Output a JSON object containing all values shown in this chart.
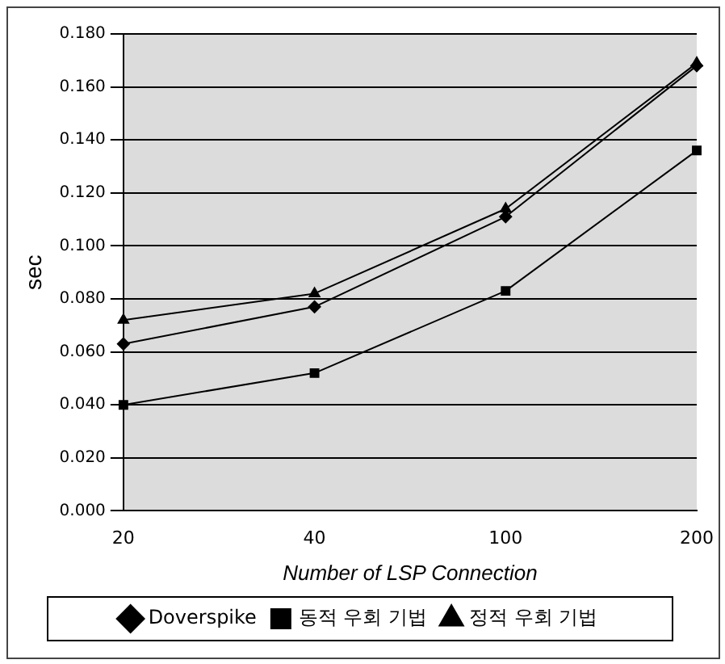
{
  "chart_data": {
    "type": "line",
    "xlabel": "Number of LSP Connection",
    "ylabel": "sec",
    "categories": [
      "20",
      "40",
      "100",
      "200"
    ],
    "ylim": [
      0,
      0.18
    ],
    "yticks": [
      {
        "value": 0,
        "label": "0.000"
      },
      {
        "value": 0.02,
        "label": "0.020"
      },
      {
        "value": 0.04,
        "label": "0.040"
      },
      {
        "value": 0.06,
        "label": "0.060"
      },
      {
        "value": 0.08,
        "label": "0.080"
      },
      {
        "value": 0.1,
        "label": "0.100"
      },
      {
        "value": 0.12,
        "label": "0.120"
      },
      {
        "value": 0.14,
        "label": "0.140"
      },
      {
        "value": 0.16,
        "label": "0.160"
      },
      {
        "value": 0.18,
        "label": "0.180"
      }
    ],
    "grid": "y",
    "legend": "bottom",
    "line_style": "solid",
    "series": [
      {
        "name": "Doverspike",
        "color": "#000000",
        "marker": "diamond",
        "values": [
          0.063,
          0.077,
          0.111,
          0.168
        ]
      },
      {
        "name": "동적 우회 기법",
        "color": "#000000",
        "marker": "square",
        "values": [
          0.04,
          0.052,
          0.083,
          0.136
        ]
      },
      {
        "name": "정적 우회 기법",
        "color": "#000000",
        "marker": "triangle",
        "values": [
          0.072,
          0.082,
          0.114,
          0.169
        ]
      }
    ]
  }
}
